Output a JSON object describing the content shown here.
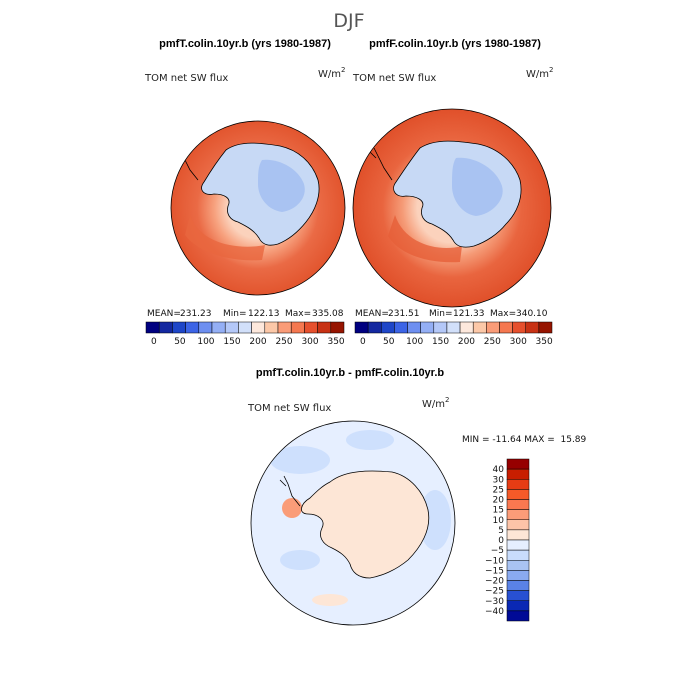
{
  "title": "DJF",
  "colors": {
    "ocean_base": "#e2552e",
    "land_light": "#c7d9f5",
    "land_mid": "#a9c3f2",
    "coast": "#000000",
    "diff_ocean": "#e6efff",
    "diff_land": "#fde6d6"
  },
  "chart_data": [
    {
      "type": "heatmap",
      "id": "panel-left",
      "title": "pmfT.colin.10yr.b (yrs 1980-1987)",
      "variable_label": "TOM net SW flux",
      "units_label": "W/m",
      "units_exp": "2",
      "stats": {
        "mean_label": "MEAN=",
        "mean": "231.23",
        "min_label": "Min=",
        "min": "122.13",
        "max_label": "Max=",
        "max": "335.08"
      },
      "colorbar": {
        "colors": [
          "#000080",
          "#1428a0",
          "#1e46c8",
          "#3c64e6",
          "#6e8ff0",
          "#94aff5",
          "#b4c8f8",
          "#d2e0fa",
          "#fde8dc",
          "#fcc8a8",
          "#fa9c78",
          "#f57850",
          "#e6502d",
          "#c83214",
          "#961400"
        ],
        "ticks": [
          "0",
          "50",
          "100",
          "150",
          "200",
          "250",
          "300",
          "350"
        ]
      }
    },
    {
      "type": "heatmap",
      "id": "panel-right",
      "title": "pmfF.colin.10yr.b (yrs 1980-1987)",
      "variable_label": "TOM net SW flux",
      "units_label": "W/m",
      "units_exp": "2",
      "stats": {
        "mean_label": "MEAN=",
        "mean": "231.51",
        "min_label": "Min=",
        "min": "121.33",
        "max_label": "Max=",
        "max": "340.10"
      },
      "colorbar": {
        "colors": [
          "#000080",
          "#1428a0",
          "#1e46c8",
          "#3c64e6",
          "#6e8ff0",
          "#94aff5",
          "#b4c8f8",
          "#d2e0fa",
          "#fde8dc",
          "#fcc8a8",
          "#fa9c78",
          "#f57850",
          "#e6502d",
          "#c83214",
          "#961400"
        ],
        "ticks": [
          "0",
          "50",
          "100",
          "150",
          "200",
          "250",
          "300",
          "350"
        ]
      }
    },
    {
      "type": "heatmap",
      "id": "panel-diff",
      "title": "pmfT.colin.10yr.b - pmfF.colin.10yr.b",
      "variable_label": "TOM net SW flux",
      "units_label": "W/m",
      "units_exp": "2",
      "stats_text": "MIN = -11.64 MAX =  15.89",
      "colorbar": {
        "colors": [
          "#960000",
          "#c81e00",
          "#e63c14",
          "#f55a28",
          "#fa7850",
          "#fc9c78",
          "#fdc4a8",
          "#fde6d6",
          "#e6efff",
          "#c8dcfc",
          "#a9c3f2",
          "#8aaaf0",
          "#5a82e6",
          "#2850d2",
          "#0a28b4",
          "#000a96"
        ],
        "ticks": [
          "40",
          "30",
          "25",
          "20",
          "15",
          "10",
          "5",
          "0",
          "−5",
          "−10",
          "−15",
          "−20",
          "−25",
          "−30",
          "−40"
        ]
      }
    }
  ]
}
